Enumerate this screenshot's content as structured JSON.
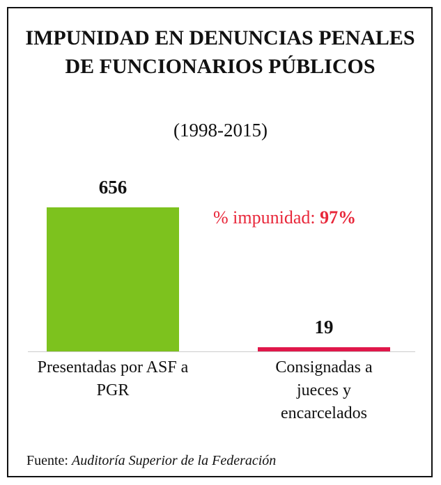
{
  "chart_data": {
    "type": "bar",
    "title": "IMPUNIDAD EN DENUNCIAS PENALES DE FUNCIONARIOS PÚBLICOS",
    "subtitle": "(1998-2015)",
    "categories": [
      "Presentadas por ASF a PGR",
      "Consignadas a jueces y encarcelados"
    ],
    "values": [
      656,
      19
    ],
    "colors": [
      "#7dc21e",
      "#e0174a"
    ],
    "annotation": "% impunidad:",
    "annotation_value": "97%",
    "source_label": "Fuente:",
    "source": "Auditoría Superior de la Federación"
  }
}
